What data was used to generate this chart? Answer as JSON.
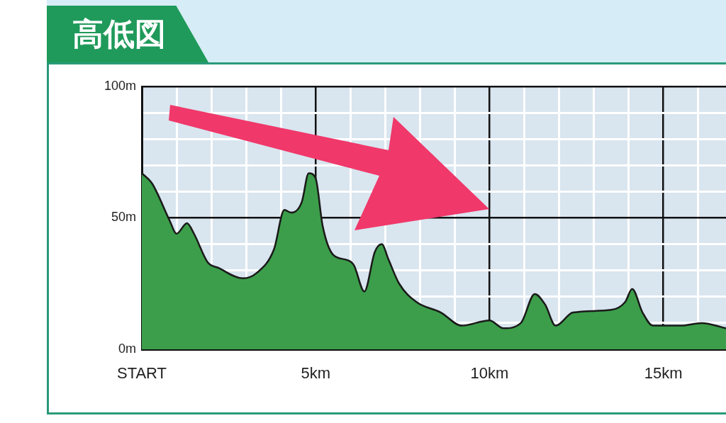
{
  "chart_data": {
    "type": "area",
    "title": "高低図",
    "x": [
      0,
      0.3,
      0.8,
      1.0,
      1.3,
      1.5,
      1.9,
      2.2,
      2.9,
      3.3,
      3.8,
      4.1,
      4.3,
      4.6,
      4.8,
      5.0,
      5.2,
      5.5,
      5.9,
      6.1,
      6.4,
      6.7,
      6.9,
      7.1,
      7.4,
      7.9,
      8.6,
      9.2,
      10.0,
      10.4,
      10.9,
      11.3,
      11.6,
      11.9,
      12.4,
      13.5,
      13.9,
      14.1,
      14.4,
      14.7,
      15.5,
      16.1,
      16.8
    ],
    "series": [
      {
        "color": "#3c9e4a",
        "values": [
          67,
          63,
          49,
          44,
          48,
          44,
          33,
          31,
          27,
          29,
          38,
          53,
          52,
          56,
          67,
          65,
          47,
          36,
          34,
          32,
          22,
          37,
          40,
          34,
          25,
          18,
          14,
          9,
          11,
          8,
          10,
          21,
          17,
          9,
          14,
          15,
          18,
          23,
          14,
          9,
          9,
          10,
          8
        ]
      }
    ],
    "xlim": [
      0,
      16.8
    ],
    "xticks": [
      {
        "value": 0,
        "label": "START"
      },
      {
        "value": 1,
        "label": null
      },
      {
        "value": 2,
        "label": null
      },
      {
        "value": 3,
        "label": null
      },
      {
        "value": 4,
        "label": null
      },
      {
        "value": 5,
        "label": "5km"
      },
      {
        "value": 6,
        "label": null
      },
      {
        "value": 7,
        "label": null
      },
      {
        "value": 8,
        "label": null
      },
      {
        "value": 9,
        "label": null
      },
      {
        "value": 10,
        "label": "10km"
      },
      {
        "value": 11,
        "label": null
      },
      {
        "value": 12,
        "label": null
      },
      {
        "value": 13,
        "label": null
      },
      {
        "value": 14,
        "label": null
      },
      {
        "value": 15,
        "label": "15km"
      },
      {
        "value": 16,
        "label": null
      }
    ],
    "ylim": [
      0,
      100
    ],
    "yticks": [
      {
        "value": 0,
        "label": "0m"
      },
      {
        "value": 10,
        "label": null
      },
      {
        "value": 20,
        "label": null
      },
      {
        "value": 30,
        "label": null
      },
      {
        "value": 40,
        "label": null
      },
      {
        "value": 50,
        "label": "50m"
      },
      {
        "value": 60,
        "label": null
      },
      {
        "value": 70,
        "label": null
      },
      {
        "value": 80,
        "label": null
      },
      {
        "value": 90,
        "label": null
      },
      {
        "value": 100,
        "label": "100m"
      }
    ],
    "grid": true
  }
}
